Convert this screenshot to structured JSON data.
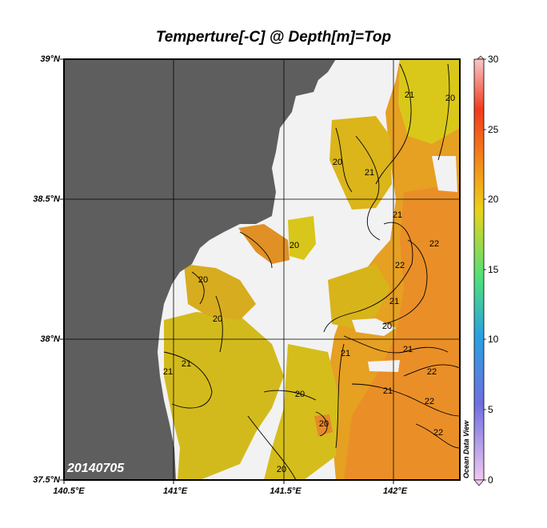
{
  "title": "Temperture[-C] @ Depth[m]=Top",
  "date_stamp": "20140705",
  "watermark": "Ocean Data View",
  "lat_labels": [
    "39°N",
    "38.5°N",
    "38°N",
    "37.5°N"
  ],
  "lon_labels": [
    "140.5°E",
    "141°E",
    "141.5°E",
    "142°E"
  ],
  "colorbar": {
    "ticks": [
      "30",
      "25",
      "20",
      "15",
      "10",
      "5",
      "0"
    ],
    "stops": [
      "#f6c8c8",
      "#f23a1e",
      "#f2a01b",
      "#e8d21a",
      "#4fe07a",
      "#2aa0e0",
      "#6f6fe0",
      "#f0c8f0"
    ]
  },
  "contour_labels": [
    "21",
    "20",
    "20",
    "21",
    "21",
    "22",
    "22",
    "21",
    "20",
    "20",
    "20",
    "21",
    "20",
    "21",
    "22",
    "21",
    "21",
    "20",
    "22",
    "21",
    "22",
    "20",
    "20"
  ],
  "colors": {
    "land": "#5e5e5e",
    "nodata": "#f2f2f2",
    "warm": "#e9932a",
    "mid": "#d6b21c",
    "cool": "#cfc619"
  }
}
